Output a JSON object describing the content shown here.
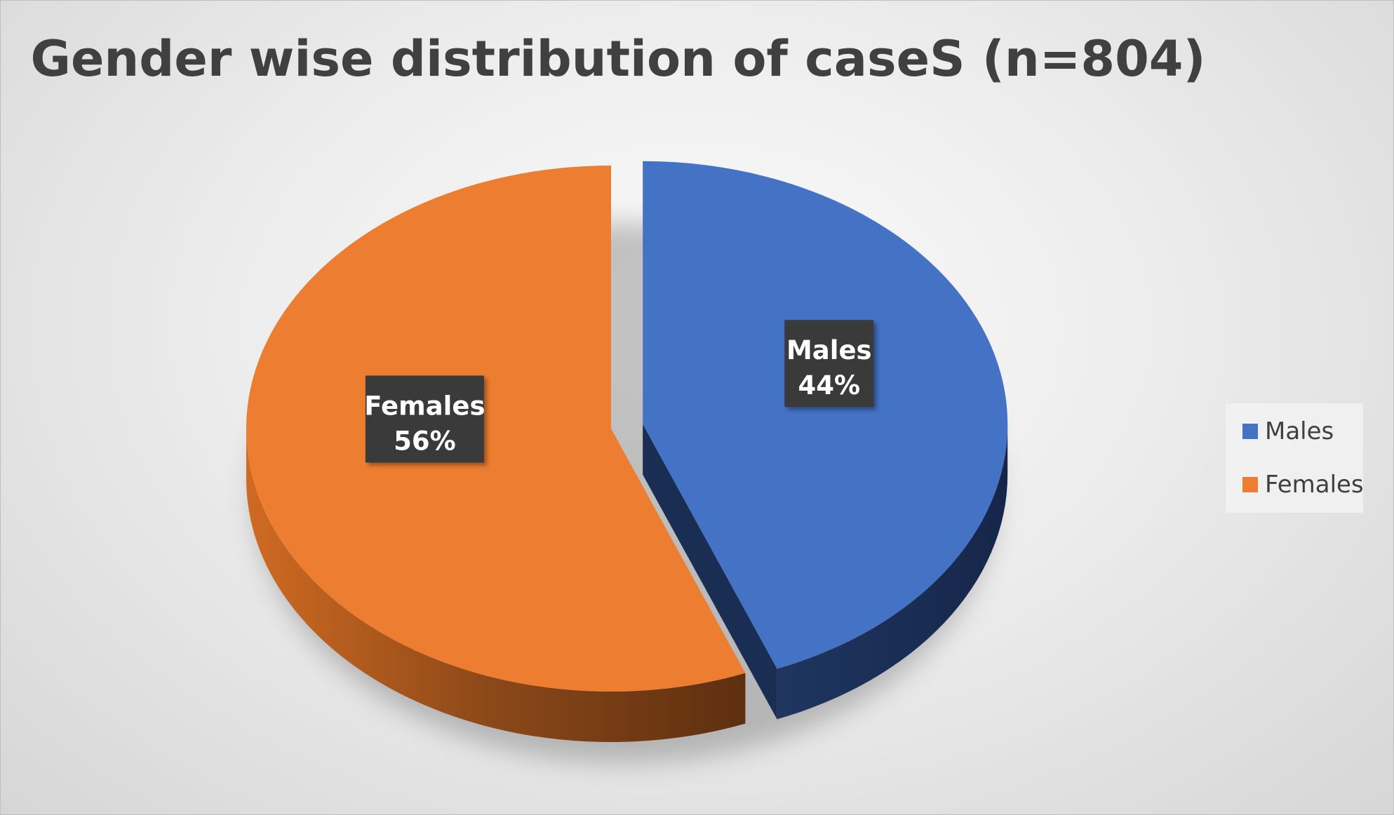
{
  "chart_data": {
    "type": "pie",
    "title": "Gender wise distribution of caseS (n=804)",
    "categories": [
      "Males",
      "Females"
    ],
    "values": [
      44,
      56
    ],
    "unit": "%",
    "slices": [
      {
        "name": "Males",
        "value": 44,
        "label_name": "Males",
        "label_value": "44%",
        "color": "#4472C4",
        "side_color": "#1A2D52"
      },
      {
        "name": "Females",
        "value": 56,
        "label_name": "Females",
        "label_value": "56%",
        "color": "#ED7D31",
        "side_color": "#8A4818"
      }
    ],
    "style": "3d-exploded",
    "legend": {
      "position": "right",
      "items": [
        {
          "label": "Males",
          "color": "#4472C4"
        },
        {
          "label": "Females",
          "color": "#ED7D31"
        }
      ]
    }
  }
}
